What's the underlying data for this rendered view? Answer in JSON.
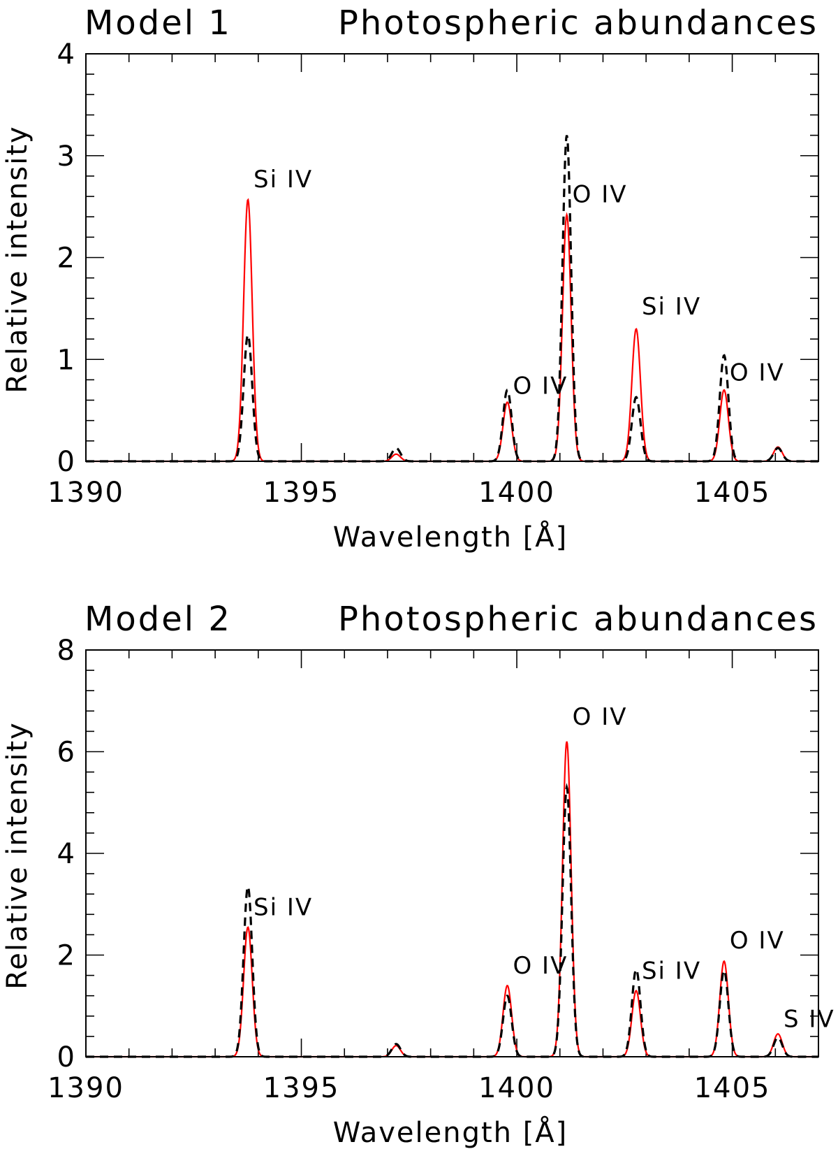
{
  "chart_data": [
    {
      "type": "line",
      "title_left": "Model 1",
      "title_right": "Photospheric abundances",
      "xlabel": "Wavelength [Å]",
      "ylabel": "Relative intensity",
      "xlim": [
        1390,
        1407
      ],
      "ylim": [
        0,
        4
      ],
      "xticks": [
        1390,
        1395,
        1400,
        1405
      ],
      "xtick_labels": [
        "1390",
        "1395",
        "1400",
        "1405"
      ],
      "yticks": [
        0,
        1,
        2,
        3,
        4
      ],
      "ytick_labels": [
        "0",
        "1",
        "2",
        "3",
        "4"
      ],
      "x_minor_step": 1,
      "y_minor_step": 0.2,
      "line_width_angstrom": 0.1,
      "series": [
        {
          "name": "red-solid",
          "color": "#ff0000",
          "style": "solid",
          "lines": [
            {
              "x": 1393.76,
              "y": 2.57
            },
            {
              "x": 1397.2,
              "y": 0.07
            },
            {
              "x": 1399.78,
              "y": 0.58
            },
            {
              "x": 1401.16,
              "y": 2.42
            },
            {
              "x": 1402.77,
              "y": 1.3
            },
            {
              "x": 1404.81,
              "y": 0.7
            },
            {
              "x": 1406.06,
              "y": 0.14
            }
          ]
        },
        {
          "name": "black-dashed",
          "color": "#000000",
          "style": "dashed",
          "lines": [
            {
              "x": 1393.76,
              "y": 1.24
            },
            {
              "x": 1397.2,
              "y": 0.13
            },
            {
              "x": 1399.78,
              "y": 0.7
            },
            {
              "x": 1401.16,
              "y": 3.2
            },
            {
              "x": 1402.77,
              "y": 0.63
            },
            {
              "x": 1404.81,
              "y": 1.04
            },
            {
              "x": 1406.06,
              "y": 0.13
            }
          ]
        }
      ],
      "annotations": [
        {
          "text": "Si IV",
          "x": 1393.76,
          "y": 2.65
        },
        {
          "text": "O IV",
          "x": 1401.16,
          "y": 2.5
        },
        {
          "text": "O IV",
          "x": 1399.78,
          "y": 0.62
        },
        {
          "text": "Si IV",
          "x": 1402.77,
          "y": 1.4
        },
        {
          "text": "O IV",
          "x": 1404.81,
          "y": 0.75
        }
      ]
    },
    {
      "type": "line",
      "title_left": "Model 2",
      "title_right": "Photospheric abundances",
      "xlabel": "Wavelength [Å]",
      "ylabel": "Relative intensity",
      "xlim": [
        1390,
        1407
      ],
      "ylim": [
        0,
        8
      ],
      "xticks": [
        1390,
        1395,
        1400,
        1405
      ],
      "xtick_labels": [
        "1390",
        "1395",
        "1400",
        "1405"
      ],
      "yticks": [
        0,
        2,
        4,
        6,
        8
      ],
      "ytick_labels": [
        "0",
        "2",
        "4",
        "6",
        "8"
      ],
      "x_minor_step": 1,
      "y_minor_step": 0.4,
      "line_width_angstrom": 0.1,
      "series": [
        {
          "name": "red-solid",
          "color": "#ff0000",
          "style": "solid",
          "lines": [
            {
              "x": 1393.76,
              "y": 2.55
            },
            {
              "x": 1397.2,
              "y": 0.22
            },
            {
              "x": 1399.78,
              "y": 1.4
            },
            {
              "x": 1401.16,
              "y": 6.2
            },
            {
              "x": 1402.77,
              "y": 1.3
            },
            {
              "x": 1404.81,
              "y": 1.88
            },
            {
              "x": 1406.06,
              "y": 0.45
            }
          ]
        },
        {
          "name": "black-dashed",
          "color": "#000000",
          "style": "dashed",
          "lines": [
            {
              "x": 1393.76,
              "y": 3.35
            },
            {
              "x": 1397.2,
              "y": 0.25
            },
            {
              "x": 1399.78,
              "y": 1.2
            },
            {
              "x": 1401.16,
              "y": 5.3
            },
            {
              "x": 1402.77,
              "y": 1.72
            },
            {
              "x": 1404.81,
              "y": 1.7
            },
            {
              "x": 1406.06,
              "y": 0.38
            }
          ]
        }
      ],
      "annotations": [
        {
          "text": "Si IV",
          "x": 1393.76,
          "y": 2.7
        },
        {
          "text": "O IV",
          "x": 1401.16,
          "y": 6.45
        },
        {
          "text": "O IV",
          "x": 1399.78,
          "y": 1.55
        },
        {
          "text": "Si IV",
          "x": 1402.77,
          "y": 1.45
        },
        {
          "text": "O IV",
          "x": 1404.81,
          "y": 2.05
        },
        {
          "text": "S IV",
          "x": 1406.06,
          "y": 0.5
        }
      ]
    }
  ]
}
